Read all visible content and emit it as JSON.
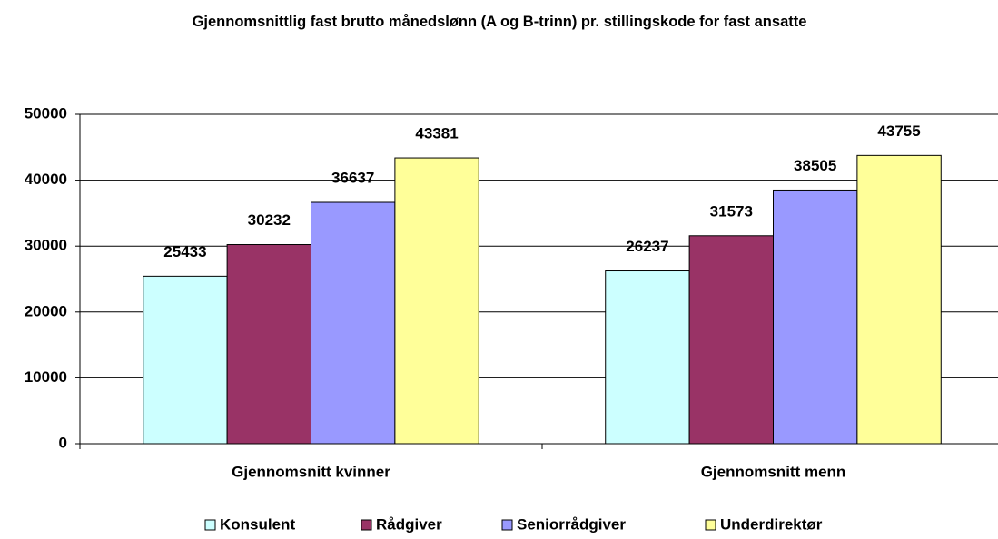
{
  "chart_data": {
    "type": "bar",
    "title": "Gjennomsnittlig fast brutto månedslønn (A og B-trinn) pr. stillingskode for fast ansatte",
    "categories": [
      "Gjennomsnitt kvinner",
      "Gjennomsnitt menn"
    ],
    "series": [
      {
        "name": "Konsulent",
        "color": "#ccffff",
        "values": [
          25433,
          26237
        ]
      },
      {
        "name": "Rådgiver",
        "color": "#993366",
        "values": [
          30232,
          31573
        ]
      },
      {
        "name": "Seniorrådgiver",
        "color": "#9999ff",
        "values": [
          36637,
          38505
        ]
      },
      {
        "name": "Underdirektør",
        "color": "#ffff99",
        "values": [
          43381,
          43755
        ]
      }
    ],
    "ylim": [
      0,
      50000
    ],
    "yticks": [
      0,
      10000,
      20000,
      30000,
      40000,
      50000
    ],
    "grid": true,
    "legend": "bottom"
  }
}
